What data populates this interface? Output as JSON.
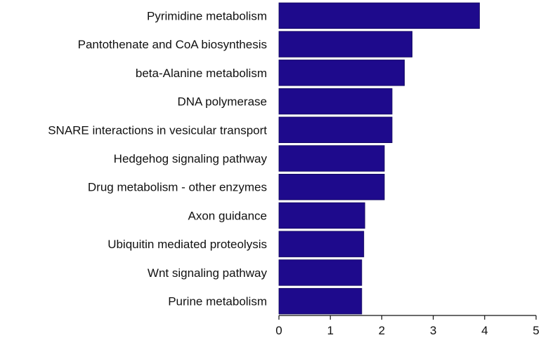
{
  "chart_data": {
    "type": "bar",
    "orientation": "horizontal",
    "categories": [
      "Pyrimidine metabolism",
      "Pantothenate and CoA biosynthesis",
      "beta-Alanine metabolism",
      "DNA polymerase",
      "SNARE interactions in vesicular transport",
      "Hedgehog signaling pathway",
      "Drug metabolism - other enzymes",
      "Axon guidance",
      "Ubiquitin mediated proteolysis",
      "Wnt signaling pathway",
      "Purine metabolism"
    ],
    "values": [
      3.9,
      2.59,
      2.44,
      2.2,
      2.2,
      2.05,
      2.05,
      1.67,
      1.65,
      1.61,
      1.61
    ],
    "xlim": [
      0,
      5
    ],
    "xticks": [
      "0",
      "1",
      "2",
      "3",
      "4",
      "5"
    ],
    "title": "",
    "xlabel": "",
    "ylabel": "",
    "grid": false,
    "colors": {
      "bar": "#1E0A8C",
      "bar_edge": "#10065A",
      "axis": "#111111",
      "text": "#111111"
    }
  }
}
